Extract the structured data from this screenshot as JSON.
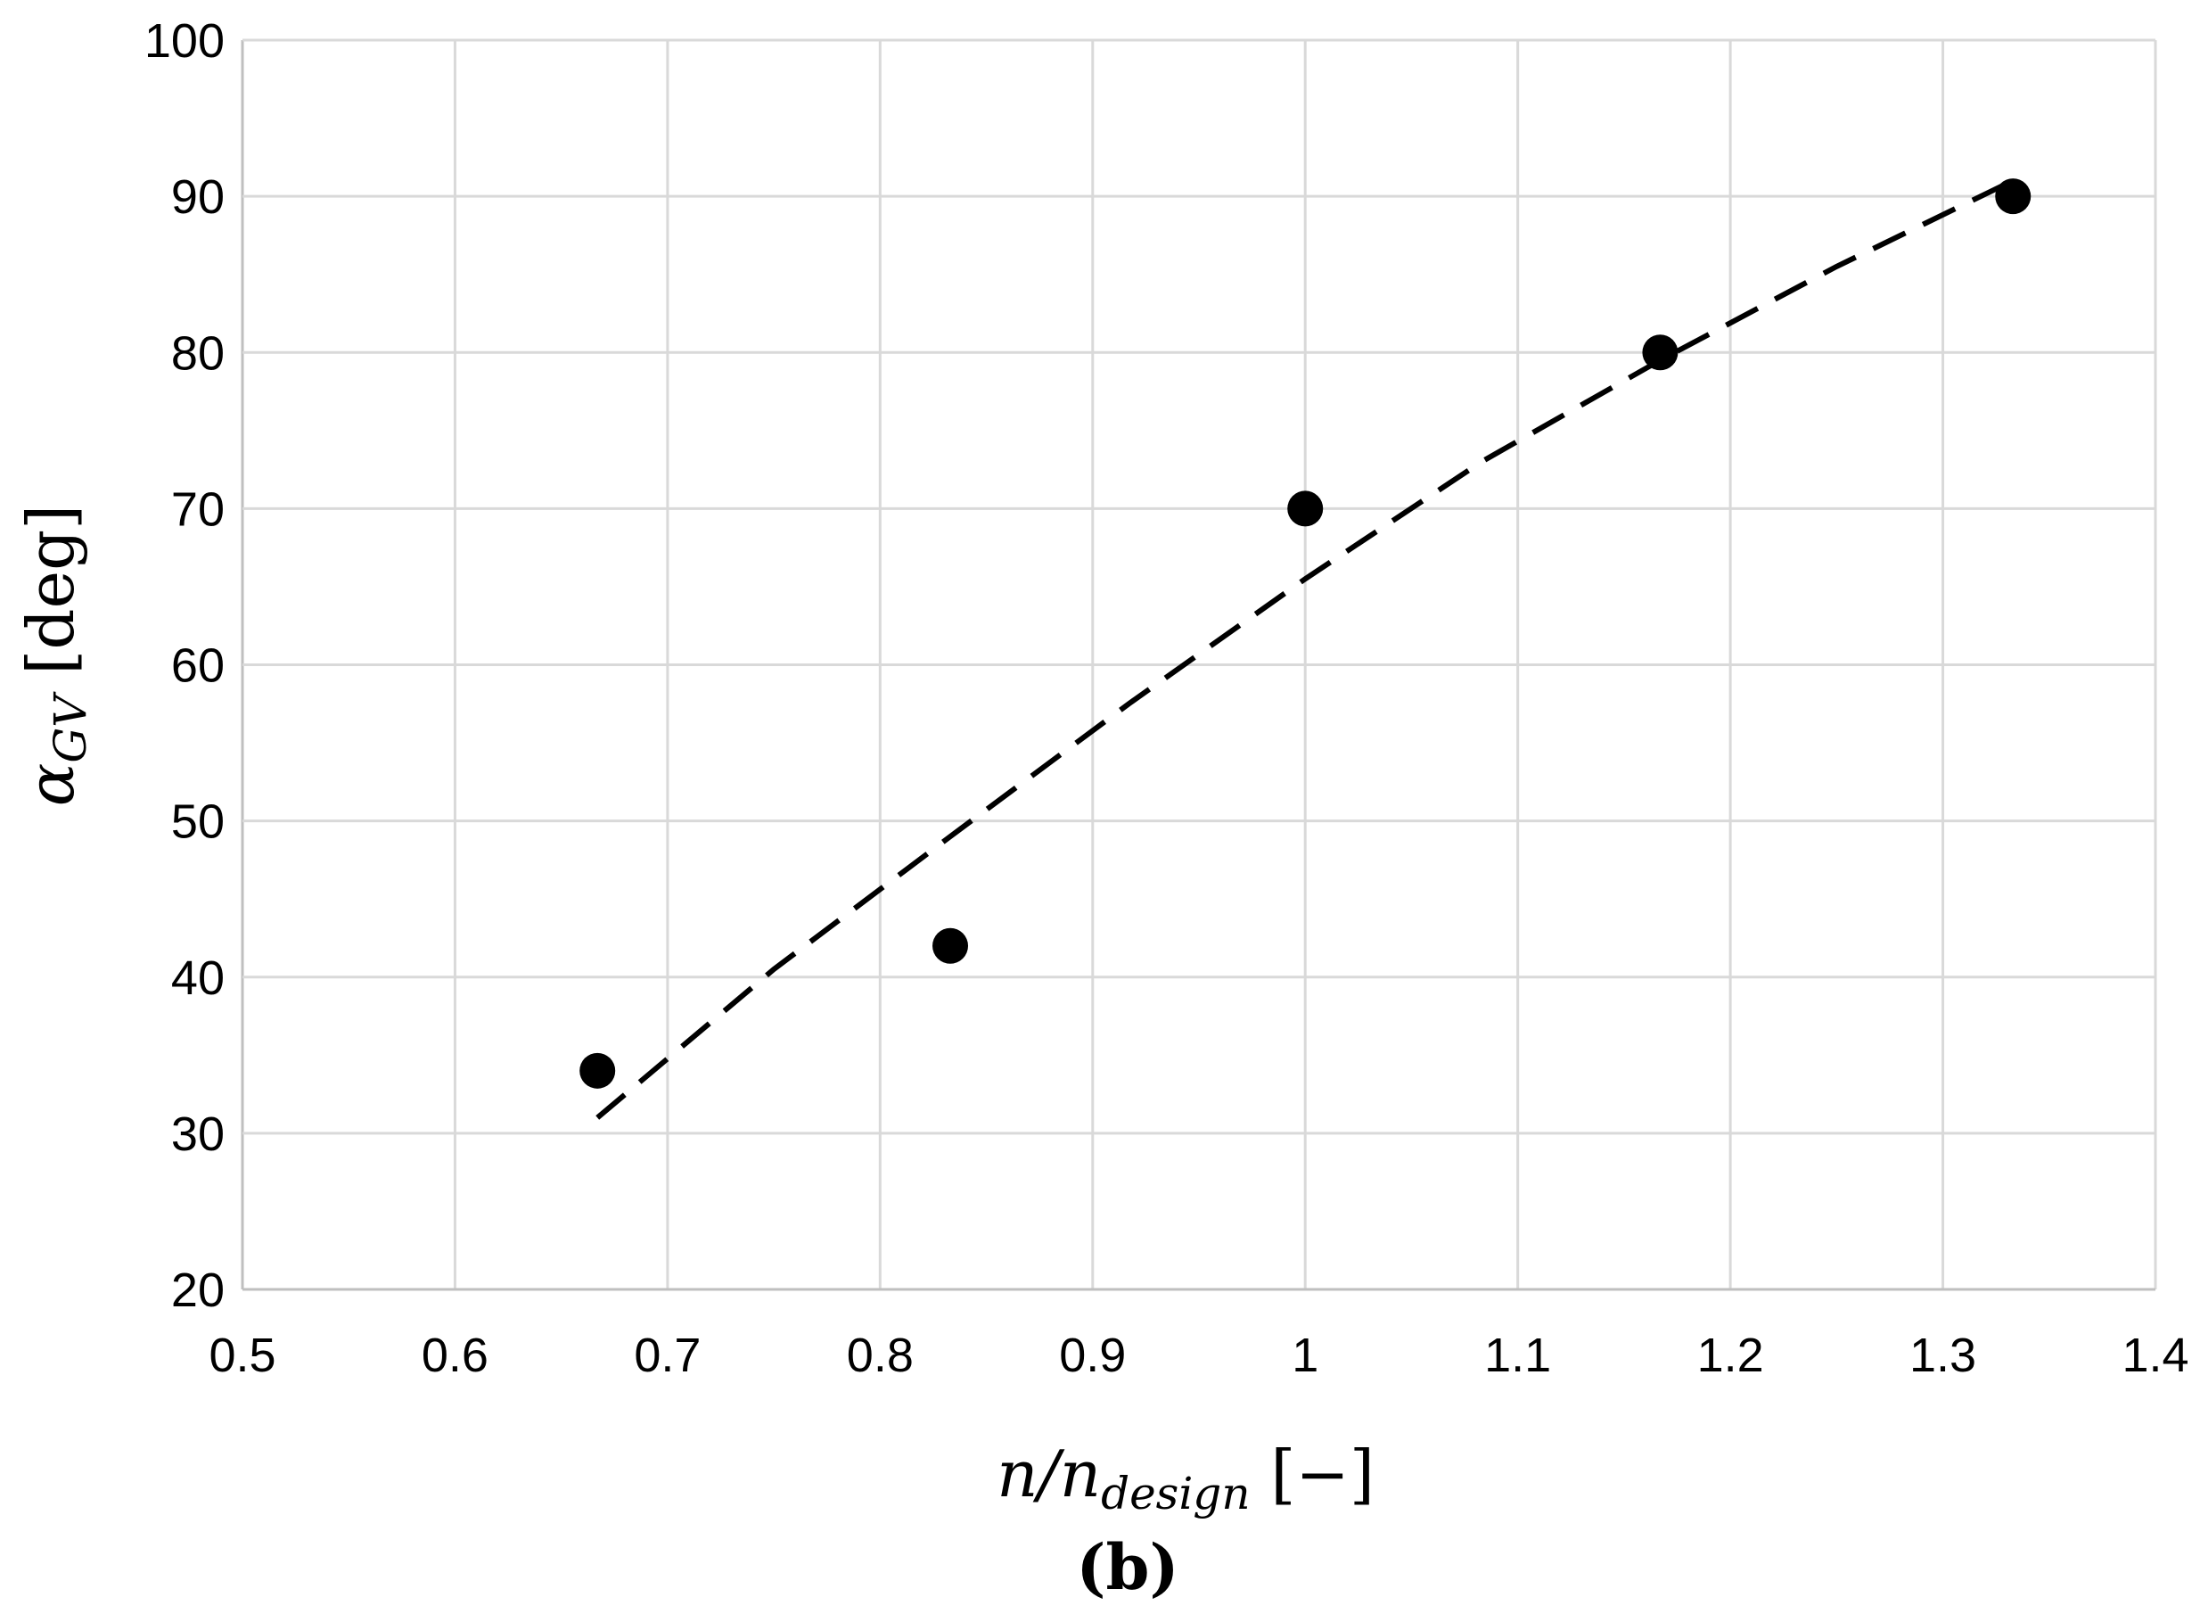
{
  "chart_data": {
    "type": "scatter",
    "xlabel": {
      "main": "n/n",
      "sub": "design",
      "unit": " [−]"
    },
    "ylabel": {
      "main": "α",
      "sub": "GV",
      "unit": " [deg]"
    },
    "panel_label": "(b)",
    "xlim": [
      0.5,
      1.4
    ],
    "ylim": [
      20,
      100
    ],
    "x_ticks": [
      0.5,
      0.6,
      0.7,
      0.8,
      0.9,
      1,
      1.1,
      1.2,
      1.3,
      1.4
    ],
    "y_ticks": [
      20,
      30,
      40,
      50,
      60,
      70,
      80,
      90,
      100
    ],
    "x_tick_labels": [
      "0.5",
      "0.6",
      "0.7",
      "0.8",
      "0.9",
      "1",
      "1.1",
      "1.2",
      "1.3",
      "1.4"
    ],
    "y_tick_labels": [
      "20",
      "30",
      "40",
      "50",
      "60",
      "70",
      "80",
      "90",
      "100"
    ],
    "grid": true,
    "series": [
      {
        "kind": "points",
        "marker": "filled-circle",
        "color": "#000000",
        "points": [
          {
            "x": 0.667,
            "y": 34
          },
          {
            "x": 0.833,
            "y": 42
          },
          {
            "x": 1.0,
            "y": 70
          },
          {
            "x": 1.167,
            "y": 80
          },
          {
            "x": 1.333,
            "y": 90
          }
        ]
      },
      {
        "kind": "trendline",
        "style": "dashed",
        "color": "#000000",
        "points": [
          {
            "x": 0.667,
            "y": 31
          },
          {
            "x": 0.75,
            "y": 40.5
          },
          {
            "x": 0.833,
            "y": 49
          },
          {
            "x": 0.917,
            "y": 57.5
          },
          {
            "x": 1.0,
            "y": 65.5
          },
          {
            "x": 1.083,
            "y": 73
          },
          {
            "x": 1.167,
            "y": 79.5
          },
          {
            "x": 1.25,
            "y": 85.5
          },
          {
            "x": 1.333,
            "y": 91
          }
        ]
      }
    ],
    "colors": {
      "grid": "#d9d9d9",
      "axis": "#bfbfbf",
      "marks": "#000000"
    }
  }
}
